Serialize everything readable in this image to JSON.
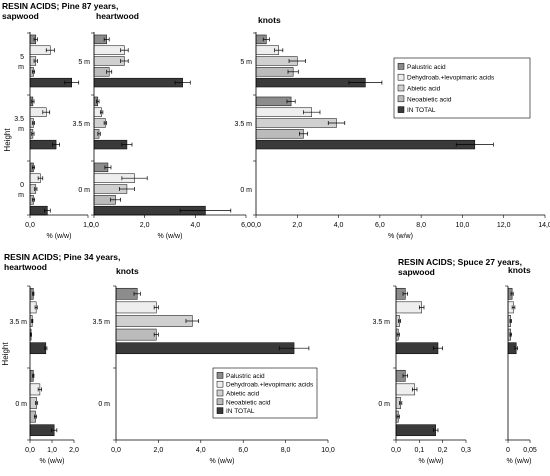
{
  "colors": {
    "palustric": "#8c8c8c",
    "dehydroab": "#eeeeee",
    "abietic": "#d0d0d0",
    "neoabietic": "#bbbbbb",
    "total": "#3a3a3a",
    "axis": "#000000",
    "error_bar": "#000000"
  },
  "texts": {
    "title_pine87_line1": "RESIN ACIDS; Pine 87 years,",
    "title_pine87_line2": "sapwood",
    "title_heartwood_top": "heartwood",
    "title_knots_top": "knots",
    "ylabel_height_top": "Height",
    "title_pine34_line1": "RESIN ACIDS; Pine 34 years,",
    "title_pine34_line2": "heartwood",
    "title_knots_bottom": "knots",
    "ylabel_height_bottom": "Height",
    "title_spruce_line1": "RESIN ACIDS; Spuce 27 years,",
    "title_spruce_line2": "sapwood",
    "title_knots_spruce": "knots"
  },
  "chart_data": [
    {
      "type": "bar",
      "orientation": "horizontal",
      "panel": "pine87-sapwood",
      "categories": [
        "5 m",
        "3.5 m",
        "0 m"
      ],
      "category_labels": [
        "5\nm",
        "3.5\nm",
        "0\nm"
      ],
      "xlabel": "% (w/w)",
      "ylabel": "Height",
      "xlim": [
        0,
        1.0
      ],
      "xticks": [
        "0,0",
        "1,0"
      ],
      "series": [
        {
          "name": "Palustric acid",
          "values": [
            0.1,
            0.05,
            0.06
          ],
          "errors": [
            0.03,
            0.02,
            0.02
          ]
        },
        {
          "name": "Dehydroab.+levopimaric acids",
          "values": [
            0.35,
            0.28,
            0.18
          ],
          "errors": [
            0.07,
            0.06,
            0.04
          ]
        },
        {
          "name": "Abietic acid",
          "values": [
            0.1,
            0.06,
            0.1
          ],
          "errors": [
            0.03,
            0.02,
            0.02
          ]
        },
        {
          "name": "Neoabietic acid",
          "values": [
            0.06,
            0.05,
            0.06
          ],
          "errors": [
            0.02,
            0.02,
            0.02
          ]
        },
        {
          "name": "IN TOTAL",
          "values": [
            0.72,
            0.45,
            0.3
          ],
          "errors": [
            0.12,
            0.06,
            0.05
          ]
        }
      ]
    },
    {
      "type": "bar",
      "orientation": "horizontal",
      "panel": "pine87-heartwood",
      "categories": [
        "5 m",
        "3.5 m",
        "0 m"
      ],
      "category_labels": [
        "5 m",
        "3.5 m",
        "0 m"
      ],
      "xlabel": "% (w/w)",
      "xlim": [
        0,
        6.0
      ],
      "xticks": [
        "0,0",
        "2,0",
        "4,0",
        "6,0"
      ],
      "series": [
        {
          "name": "Palustric acid",
          "values": [
            0.5,
            0.15,
            0.55
          ],
          "errors": [
            0.1,
            0.05,
            0.12
          ]
        },
        {
          "name": "Dehydroab.+levopimaric acids",
          "values": [
            1.2,
            0.3,
            1.6
          ],
          "errors": [
            0.15,
            0.05,
            0.5
          ]
        },
        {
          "name": "Abietic acid",
          "values": [
            1.2,
            0.45,
            1.3
          ],
          "errors": [
            0.15,
            0.05,
            0.3
          ]
        },
        {
          "name": "Neoabietic acid",
          "values": [
            0.6,
            0.2,
            0.85
          ],
          "errors": [
            0.1,
            0.05,
            0.2
          ]
        },
        {
          "name": "IN TOTAL",
          "values": [
            3.5,
            1.3,
            4.4
          ],
          "errors": [
            0.3,
            0.2,
            1.0
          ]
        }
      ]
    },
    {
      "type": "bar",
      "orientation": "horizontal",
      "panel": "pine87-knots",
      "categories": [
        "5 m",
        "3.5 m",
        "0 m"
      ],
      "category_labels": [
        "5 m",
        "3.5 m",
        "0 m"
      ],
      "xlabel": "% (w/w)",
      "xlim": [
        0,
        14.0
      ],
      "xticks": [
        "0,0",
        "2,0",
        "4,0",
        "6,0",
        "8,0",
        "10,0",
        "12,0",
        "14,0"
      ],
      "legend": "inside-right",
      "series": [
        {
          "name": "Palustric acid",
          "values": [
            0.5,
            1.7,
            0
          ],
          "errors": [
            0.15,
            0.2,
            0
          ]
        },
        {
          "name": "Dehydroab.+levopimaric acids",
          "values": [
            1.1,
            2.7,
            0
          ],
          "errors": [
            0.2,
            0.4,
            0
          ]
        },
        {
          "name": "Abietic acid",
          "values": [
            2.0,
            3.9,
            0
          ],
          "errors": [
            0.4,
            0.4,
            0
          ]
        },
        {
          "name": "Neoabietic acid",
          "values": [
            1.8,
            2.3,
            0
          ],
          "errors": [
            0.25,
            0.2,
            0
          ]
        },
        {
          "name": "IN TOTAL",
          "values": [
            5.3,
            10.6,
            0
          ],
          "errors": [
            0.8,
            0.9,
            0
          ]
        }
      ]
    },
    {
      "type": "bar",
      "orientation": "horizontal",
      "panel": "pine34-heartwood",
      "categories": [
        "3.5 m",
        "0 m"
      ],
      "category_labels": [
        "3.5 m",
        "0 m"
      ],
      "xlabel": "% (w/w)",
      "ylabel": "Height",
      "xlim": [
        0,
        2.0
      ],
      "xticks": [
        "0,0",
        "1,0",
        "2,0"
      ],
      "series": [
        {
          "name": "Palustric acid",
          "values": [
            0.15,
            0.15
          ],
          "errors": [
            0.03,
            0.03
          ]
        },
        {
          "name": "Dehydroab.+levopimaric acids",
          "values": [
            0.28,
            0.45
          ],
          "errors": [
            0.05,
            0.08
          ]
        },
        {
          "name": "Abietic acid",
          "values": [
            0.1,
            0.3
          ],
          "errors": [
            0.03,
            0.05
          ]
        },
        {
          "name": "Neoabietic acid",
          "values": [
            0.05,
            0.25
          ],
          "errors": [
            0.02,
            0.05
          ]
        },
        {
          "name": "IN TOTAL",
          "values": [
            0.72,
            1.1
          ],
          "errors": [
            0.05,
            0.12
          ]
        }
      ]
    },
    {
      "type": "bar",
      "orientation": "horizontal",
      "panel": "pine34-knots",
      "categories": [
        "3.5 m",
        "0 m"
      ],
      "category_labels": [
        "3.5 m",
        "0 m"
      ],
      "xlabel": "% (w/w)",
      "xlim": [
        0,
        10.0
      ],
      "xticks": [
        "0,0",
        "2,0",
        "4,0",
        "6,0",
        "8,0",
        "10,0"
      ],
      "legend": "inside-center",
      "series": [
        {
          "name": "Palustric acid",
          "values": [
            1.0,
            0
          ],
          "errors": [
            0.15,
            0
          ]
        },
        {
          "name": "Dehydroab.+levopimaric acids",
          "values": [
            1.9,
            0
          ],
          "errors": [
            0.1,
            0
          ]
        },
        {
          "name": "Abietic acid",
          "values": [
            3.6,
            0
          ],
          "errors": [
            0.3,
            0
          ]
        },
        {
          "name": "Neoabietic acid",
          "values": [
            1.9,
            0
          ],
          "errors": [
            0.1,
            0
          ]
        },
        {
          "name": "IN TOTAL",
          "values": [
            8.4,
            0
          ],
          "errors": [
            0.7,
            0
          ]
        }
      ]
    },
    {
      "type": "bar",
      "orientation": "horizontal",
      "panel": "spruce27-sapwood",
      "categories": [
        "3.5 m",
        "0 m"
      ],
      "category_labels": [
        "3.5 m",
        "0 m"
      ],
      "xlabel": "% (w/w)",
      "xlim": [
        0,
        0.3
      ],
      "xticks": [
        "0,0",
        "0,1",
        "0,2",
        "0,3"
      ],
      "series": [
        {
          "name": "Palustric acid",
          "values": [
            0.04,
            0.04
          ],
          "errors": [
            0.01,
            0.01
          ]
        },
        {
          "name": "Dehydroab.+levopimaric acids",
          "values": [
            0.11,
            0.08
          ],
          "errors": [
            0.01,
            0.01
          ]
        },
        {
          "name": "Abietic acid",
          "values": [
            0.015,
            0.02
          ],
          "errors": [
            0.005,
            0.005
          ]
        },
        {
          "name": "Neoabietic acid",
          "values": [
            0.01,
            0.01
          ],
          "errors": [
            0.005,
            0.005
          ]
        },
        {
          "name": "IN TOTAL",
          "values": [
            0.18,
            0.17
          ],
          "errors": [
            0.02,
            0.01
          ]
        }
      ]
    },
    {
      "type": "bar",
      "orientation": "horizontal",
      "panel": "spruce27-knots",
      "categories": [
        "3.5 m"
      ],
      "category_labels": [
        ""
      ],
      "xlabel": "% (w/w)",
      "xlim": [
        0,
        0.08
      ],
      "xticks": [
        "0",
        "0,05"
      ],
      "series": [
        {
          "name": "Palustric acid",
          "values": [
            0.015
          ],
          "errors": [
            0.004
          ]
        },
        {
          "name": "Dehydroab.+levopimaric acids",
          "values": [
            0.02
          ],
          "errors": [
            0.005
          ]
        },
        {
          "name": "Abietic acid",
          "values": [
            0.01
          ],
          "errors": [
            0.003
          ]
        },
        {
          "name": "Neoabietic acid",
          "values": [
            0.01
          ],
          "errors": [
            0.003
          ]
        },
        {
          "name": "IN TOTAL",
          "values": [
            0.03
          ],
          "errors": [
            0.005
          ]
        }
      ]
    }
  ]
}
